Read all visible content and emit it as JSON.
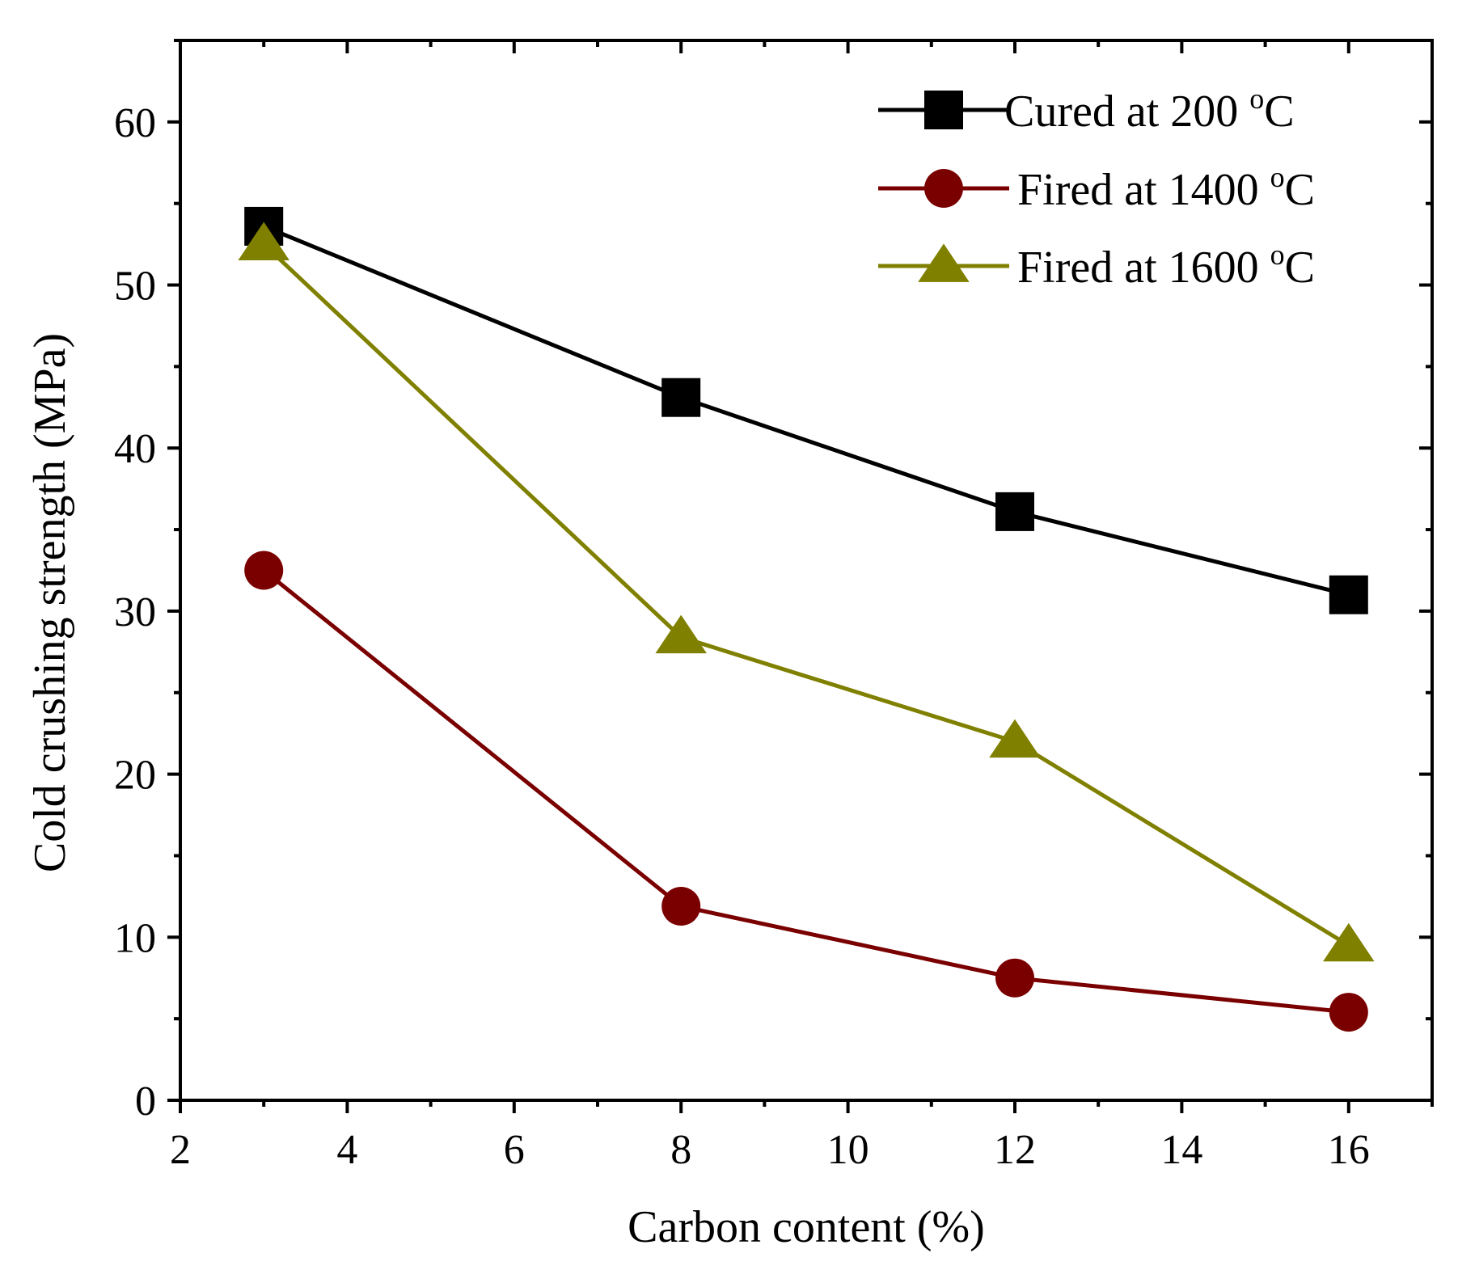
{
  "chart_data": {
    "type": "line",
    "xlabel": "Carbon content (%)",
    "ylabel": "Cold crushing strength (MPa)",
    "xlim": [
      2,
      17
    ],
    "ylim": [
      0,
      65
    ],
    "xticks": [
      2,
      4,
      6,
      8,
      10,
      12,
      14,
      16
    ],
    "yticks": [
      0,
      10,
      20,
      30,
      40,
      50,
      60
    ],
    "x_minor_step": 1,
    "y_minor_step": 5,
    "grid": false,
    "legend_position": "top-right",
    "series": [
      {
        "name": "Cured at 200 °C",
        "name_parts": [
          "Cured at 200 ",
          "o",
          "C"
        ],
        "marker": "square",
        "color": "#000000",
        "x": [
          3,
          8,
          12,
          16
        ],
        "y": [
          53.6,
          43.1,
          36.1,
          31.0
        ]
      },
      {
        "name": "Fired at 1400 °C",
        "name_parts": [
          "Fired at 1400 ",
          "o",
          "C"
        ],
        "marker": "circle",
        "color": "#7a0000",
        "x": [
          3,
          8,
          12,
          16
        ],
        "y": [
          32.5,
          11.9,
          7.5,
          5.4
        ]
      },
      {
        "name": "Fired at 1600 °C",
        "name_parts": [
          "Fired at 1600 ",
          "o",
          "C"
        ],
        "marker": "triangle",
        "color": "#808000",
        "x": [
          3,
          8,
          12,
          16
        ],
        "y": [
          52.5,
          28.4,
          22.0,
          9.5
        ]
      }
    ]
  }
}
